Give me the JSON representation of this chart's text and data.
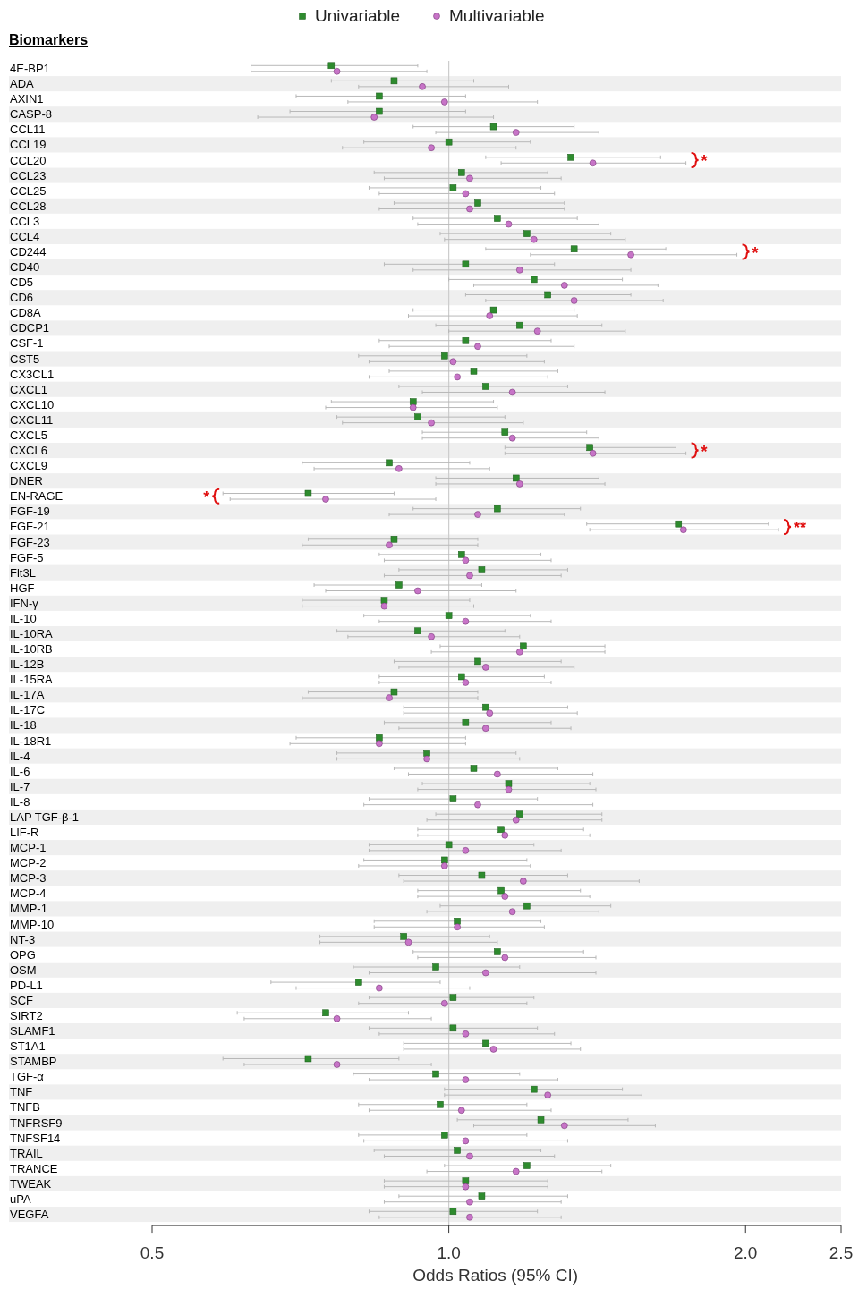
{
  "chart_data": {
    "type": "scatter",
    "orientation": "horizontal",
    "log": "x",
    "xlabel": "Odds Ratios (95% CI)",
    "ylabel": "Biomarkers",
    "legend": "top",
    "grid": false,
    "categories": [
      "4E-BP1",
      "ADA",
      "AXIN1",
      "CASP-8",
      "CCL11",
      "CCL19",
      "CCL20",
      "CCL23",
      "CCL25",
      "CCL28",
      "CCL3",
      "CCL4",
      "CD244",
      "CD40",
      "CD5",
      "CD6",
      "CD8A",
      "CDCP1",
      "CSF-1",
      "CST5",
      "CX3CL1",
      "CXCL1",
      "CXCL10",
      "CXCL11",
      "CXCL5",
      "CXCL6",
      "CXCL9",
      "DNER",
      "EN-RAGE",
      "FGF-19",
      "FGF-21",
      "FGF-23",
      "FGF-5",
      "Flt3L",
      "HGF",
      "IFN-γ",
      "IL-10",
      "IL-10RA",
      "IL-10RB",
      "IL-12B",
      "IL-15RA",
      "IL-17A",
      "IL-17C",
      "IL-18",
      "IL-18R1",
      "IL-4",
      "IL-6",
      "IL-7",
      "IL-8",
      "LAP TGF-β-1",
      "LIF-R",
      "MCP-1",
      "MCP-2",
      "MCP-3",
      "MCP-4",
      "MMP-1",
      "MMP-10",
      "NT-3",
      "OPG",
      "OSM",
      "PD-L1",
      "SCF",
      "SIRT2",
      "SLAMF1",
      "ST1A1",
      "STAMBP",
      "TGF-α",
      "TNF",
      "TNFB",
      "TNFRSF9",
      "TNFSF14",
      "TRAIL",
      "TRANCE",
      "TWEAK",
      "uPA",
      "VEGFA"
    ],
    "xlim": [
      0.5,
      2.5
    ],
    "xticks": [
      0.5,
      {
        "value": 1,
        "label": "1.0"
      },
      {
        "value": 2,
        "label": "2.0"
      },
      2.5
    ],
    "ref_lines": [
      {
        "axis": "x",
        "value": 1,
        "color": "#cccccc"
      }
    ],
    "series": [
      {
        "name": "Univariable",
        "color": "#2e8b2e",
        "marker": "square",
        "values": [
          0.76,
          0.88,
          0.85,
          0.85,
          1.11,
          1.0,
          1.33,
          1.03,
          1.01,
          1.07,
          1.12,
          1.2,
          1.34,
          1.04,
          1.22,
          1.26,
          1.11,
          1.18,
          1.04,
          0.99,
          1.06,
          1.09,
          0.92,
          0.93,
          1.14,
          1.39,
          0.87,
          1.17,
          0.72,
          1.12,
          1.71,
          0.88,
          1.03,
          1.08,
          0.89,
          0.86,
          1.0,
          0.93,
          1.19,
          1.07,
          1.03,
          0.88,
          1.09,
          1.04,
          0.85,
          0.95,
          1.06,
          1.15,
          1.01,
          1.18,
          1.13,
          1.0,
          0.99,
          1.08,
          1.13,
          1.2,
          1.02,
          0.9,
          1.12,
          0.97,
          0.81,
          1.01,
          0.75,
          1.01,
          1.09,
          0.72,
          0.97,
          1.22,
          0.98,
          1.24,
          0.99,
          1.02,
          1.2,
          1.04,
          1.08,
          1.01
        ],
        "errors": [
          [
            0.63,
            0.93
          ],
          [
            0.76,
            1.06
          ],
          [
            0.7,
            1.04
          ],
          [
            0.69,
            1.04
          ],
          [
            0.92,
            1.34
          ],
          [
            0.82,
            1.21
          ],
          [
            1.09,
            1.64
          ],
          [
            0.84,
            1.26
          ],
          [
            0.83,
            1.24
          ],
          [
            0.88,
            1.31
          ],
          [
            0.92,
            1.35
          ],
          [
            0.98,
            1.46
          ],
          [
            1.09,
            1.66
          ],
          [
            0.86,
            1.28
          ],
          [
            1.0,
            1.5
          ],
          [
            1.04,
            1.53
          ],
          [
            0.92,
            1.34
          ],
          [
            0.97,
            1.43
          ],
          [
            0.85,
            1.27
          ],
          [
            0.81,
            1.2
          ],
          [
            0.87,
            1.29
          ],
          [
            0.89,
            1.32
          ],
          [
            0.76,
            1.11
          ],
          [
            0.77,
            1.14
          ],
          [
            0.94,
            1.38
          ],
          [
            1.14,
            1.7
          ],
          [
            0.71,
            1.05
          ],
          [
            0.97,
            1.42
          ],
          [
            0.59,
            0.88
          ],
          [
            0.92,
            1.36
          ],
          [
            1.38,
            2.11
          ],
          [
            0.72,
            1.07
          ],
          [
            0.85,
            1.24
          ],
          [
            0.89,
            1.32
          ],
          [
            0.73,
            1.08
          ],
          [
            0.71,
            1.05
          ],
          [
            0.82,
            1.21
          ],
          [
            0.77,
            1.14
          ],
          [
            0.98,
            1.44
          ],
          [
            0.88,
            1.3
          ],
          [
            0.85,
            1.25
          ],
          [
            0.72,
            1.07
          ],
          [
            0.9,
            1.32
          ],
          [
            0.86,
            1.27
          ],
          [
            0.7,
            1.04
          ],
          [
            0.77,
            1.17
          ],
          [
            0.88,
            1.29
          ],
          [
            0.94,
            1.39
          ],
          [
            0.83,
            1.23
          ],
          [
            0.97,
            1.43
          ],
          [
            0.93,
            1.37
          ],
          [
            0.83,
            1.22
          ],
          [
            0.82,
            1.2
          ],
          [
            0.89,
            1.32
          ],
          [
            0.93,
            1.36
          ],
          [
            0.98,
            1.46
          ],
          [
            0.84,
            1.24
          ],
          [
            0.74,
            1.1
          ],
          [
            0.92,
            1.37
          ],
          [
            0.8,
            1.18
          ],
          [
            0.66,
            0.98
          ],
          [
            0.83,
            1.22
          ],
          [
            0.61,
            0.91
          ],
          [
            0.83,
            1.23
          ],
          [
            0.9,
            1.33
          ],
          [
            0.59,
            0.89
          ],
          [
            0.8,
            1.18
          ],
          [
            0.99,
            1.5
          ],
          [
            0.81,
            1.2
          ],
          [
            1.02,
            1.52
          ],
          [
            0.81,
            1.2
          ],
          [
            0.84,
            1.24
          ],
          [
            0.99,
            1.46
          ],
          [
            0.86,
            1.26
          ],
          [
            0.89,
            1.32
          ],
          [
            0.83,
            1.23
          ]
        ]
      },
      {
        "name": "Multivariable",
        "color": "#c774c7",
        "marker": "circle",
        "values": [
          0.77,
          0.94,
          0.99,
          0.84,
          1.17,
          0.96,
          1.4,
          1.05,
          1.04,
          1.05,
          1.15,
          1.22,
          1.53,
          1.18,
          1.31,
          1.34,
          1.1,
          1.23,
          1.07,
          1.01,
          1.02,
          1.16,
          0.92,
          0.96,
          1.16,
          1.4,
          0.89,
          1.18,
          0.75,
          1.07,
          1.73,
          0.87,
          1.04,
          1.05,
          0.93,
          0.86,
          1.04,
          0.96,
          1.18,
          1.09,
          1.04,
          0.87,
          1.1,
          1.09,
          0.85,
          0.95,
          1.12,
          1.15,
          1.07,
          1.17,
          1.14,
          1.04,
          0.99,
          1.19,
          1.14,
          1.16,
          1.02,
          0.91,
          1.14,
          1.09,
          0.85,
          0.99,
          0.77,
          1.04,
          1.11,
          0.77,
          1.04,
          1.26,
          1.03,
          1.31,
          1.04,
          1.05,
          1.17,
          1.04,
          1.05,
          1.05
        ],
        "errors": [
          [
            0.63,
            0.95
          ],
          [
            0.81,
            1.15
          ],
          [
            0.79,
            1.23
          ],
          [
            0.64,
            1.11
          ],
          [
            0.97,
            1.42
          ],
          [
            0.78,
            1.17
          ],
          [
            1.13,
            1.74
          ],
          [
            0.86,
            1.3
          ],
          [
            0.85,
            1.28
          ],
          [
            0.85,
            1.31
          ],
          [
            0.93,
            1.42
          ],
          [
            0.99,
            1.51
          ],
          [
            1.21,
            1.96
          ],
          [
            0.92,
            1.53
          ],
          [
            1.06,
            1.63
          ],
          [
            1.09,
            1.65
          ],
          [
            0.91,
            1.35
          ],
          [
            1.0,
            1.51
          ],
          [
            0.87,
            1.34
          ],
          [
            0.83,
            1.25
          ],
          [
            0.83,
            1.26
          ],
          [
            0.94,
            1.44
          ],
          [
            0.75,
            1.12
          ],
          [
            0.78,
            1.19
          ],
          [
            0.94,
            1.42
          ],
          [
            1.14,
            1.74
          ],
          [
            0.73,
            1.1
          ],
          [
            0.97,
            1.44
          ],
          [
            0.6,
            0.97
          ],
          [
            0.87,
            1.31
          ],
          [
            1.39,
            2.16
          ],
          [
            0.71,
            1.07
          ],
          [
            0.86,
            1.27
          ],
          [
            0.86,
            1.3
          ],
          [
            0.75,
            1.17
          ],
          [
            0.71,
            1.06
          ],
          [
            0.85,
            1.27
          ],
          [
            0.79,
            1.18
          ],
          [
            0.96,
            1.44
          ],
          [
            0.89,
            1.34
          ],
          [
            0.85,
            1.27
          ],
          [
            0.71,
            1.07
          ],
          [
            0.9,
            1.35
          ],
          [
            0.89,
            1.33
          ],
          [
            0.69,
            1.04
          ],
          [
            0.77,
            1.18
          ],
          [
            0.91,
            1.4
          ],
          [
            0.93,
            1.41
          ],
          [
            0.82,
            1.4
          ],
          [
            0.95,
            1.43
          ],
          [
            0.93,
            1.39
          ],
          [
            0.83,
            1.3
          ],
          [
            0.81,
            1.21
          ],
          [
            0.9,
            1.56
          ],
          [
            0.93,
            1.39
          ],
          [
            0.95,
            1.42
          ],
          [
            0.84,
            1.25
          ],
          [
            0.74,
            1.12
          ],
          [
            0.93,
            1.41
          ],
          [
            0.83,
            1.41
          ],
          [
            0.7,
            1.05
          ],
          [
            0.81,
            1.2
          ],
          [
            0.62,
            0.96
          ],
          [
            0.85,
            1.28
          ],
          [
            0.9,
            1.36
          ],
          [
            0.62,
            0.96
          ],
          [
            0.83,
            1.29
          ],
          [
            0.99,
            1.57
          ],
          [
            0.83,
            1.27
          ],
          [
            1.06,
            1.62
          ],
          [
            0.82,
            1.32
          ],
          [
            0.86,
            1.28
          ],
          [
            0.95,
            1.43
          ],
          [
            0.86,
            1.26
          ],
          [
            0.86,
            1.3
          ],
          [
            0.85,
            1.3
          ]
        ]
      }
    ],
    "annotations": [
      "*",
      "*",
      "*",
      "*",
      "**"
    ]
  }
}
